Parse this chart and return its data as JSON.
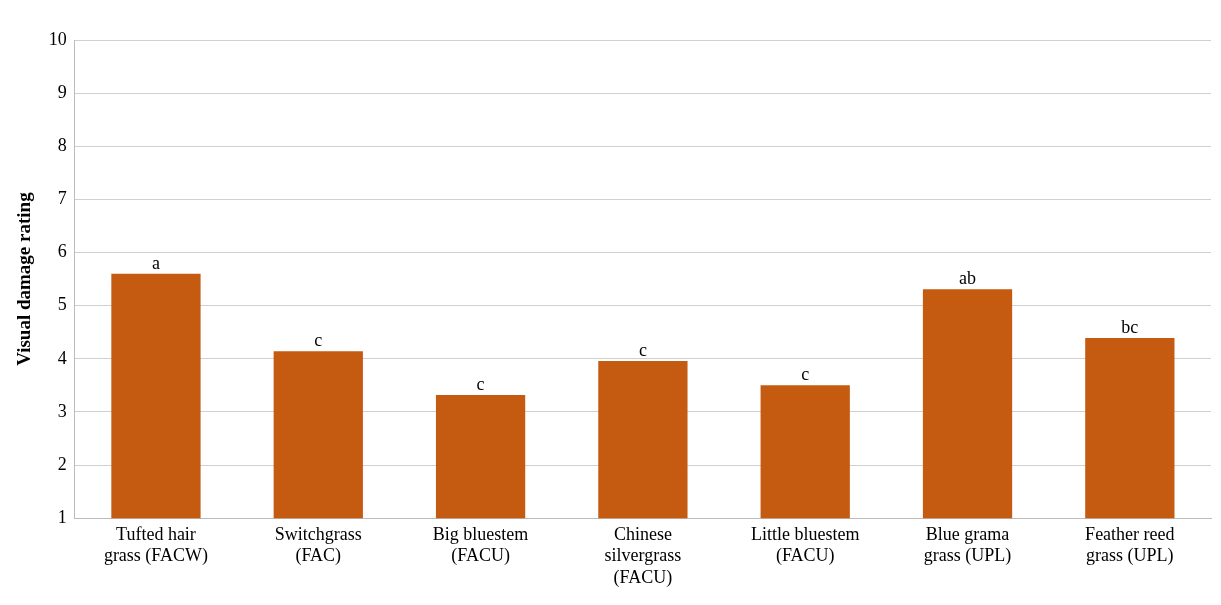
{
  "chart_data": {
    "type": "bar",
    "ylabel": "Visual damage rating",
    "categories": [
      "Tufted hair grass (FACW)",
      "Switchgrass (FAC)",
      "Big bluestem (FACU)",
      "Chinese silvergrass (FACU)",
      "Little bluestem (FACU)",
      "Blue grama grass (UPL)",
      "Feather reed grass (UPL)"
    ],
    "values": [
      5.6,
      4.14,
      3.32,
      3.96,
      3.5,
      5.31,
      4.39
    ],
    "color": "#c55a11",
    "ylim": [
      1,
      10
    ],
    "yticks": [
      1,
      2,
      3,
      4,
      5,
      6,
      7,
      8,
      9,
      10
    ],
    "grid": "y",
    "legend": false,
    "annotations": [
      {
        "text": "a",
        "x": "Tufted hair grass (FACW)",
        "y": 5.6
      },
      {
        "text": "c",
        "x": "Switchgrass (FAC)",
        "y": 4.14
      },
      {
        "text": "c",
        "x": "Big bluestem (FACU)",
        "y": 3.32
      },
      {
        "text": "c",
        "x": "Chinese silvergrass (FACU)",
        "y": 3.96
      },
      {
        "text": "c",
        "x": "Little bluestem (FACU)",
        "y": 3.5
      },
      {
        "text": "ab",
        "x": "Blue grama grass (UPL)",
        "y": 5.31
      },
      {
        "text": "bc",
        "x": "Feather reed grass (UPL)",
        "y": 4.39
      }
    ]
  }
}
